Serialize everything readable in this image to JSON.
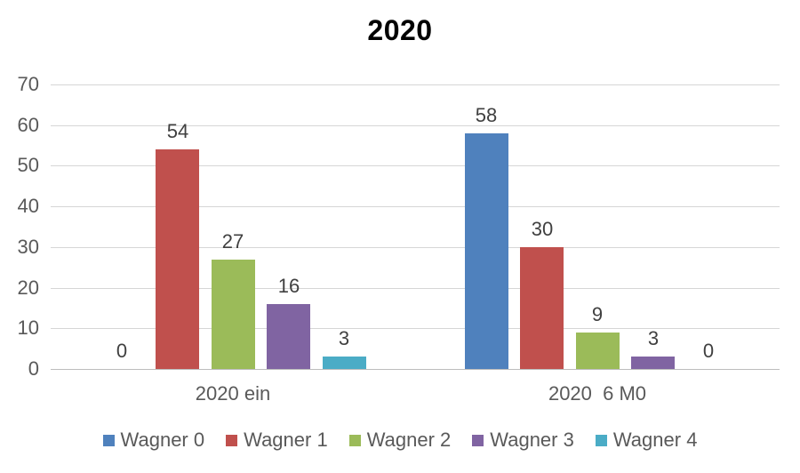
{
  "chart_data": {
    "type": "bar",
    "title": "2020",
    "categories": [
      "2020 ein",
      "2020  6 M0"
    ],
    "series": [
      {
        "name": "Wagner 0",
        "color": "#4F81BD",
        "values": [
          0,
          58
        ]
      },
      {
        "name": "Wagner 1",
        "color": "#C0504D",
        "values": [
          54,
          30
        ]
      },
      {
        "name": "Wagner 2",
        "color": "#9BBB59",
        "values": [
          27,
          9
        ]
      },
      {
        "name": "Wagner 3",
        "color": "#8064A2",
        "values": [
          16,
          3
        ]
      },
      {
        "name": "Wagner 4",
        "color": "#4BACC6",
        "values": [
          3,
          0
        ]
      }
    ],
    "ylim": [
      0,
      70
    ],
    "yticks": [
      0,
      10,
      20,
      30,
      40,
      50,
      60,
      70
    ],
    "grid": true,
    "data_labels": true,
    "legend_position": "bottom",
    "colors": {
      "gridline": "#d6d6d6",
      "baseline": "#bdbdbd",
      "axis_text": "#595959",
      "data_label_text": "#404040",
      "title_text": "#000000",
      "background": "#ffffff"
    }
  }
}
